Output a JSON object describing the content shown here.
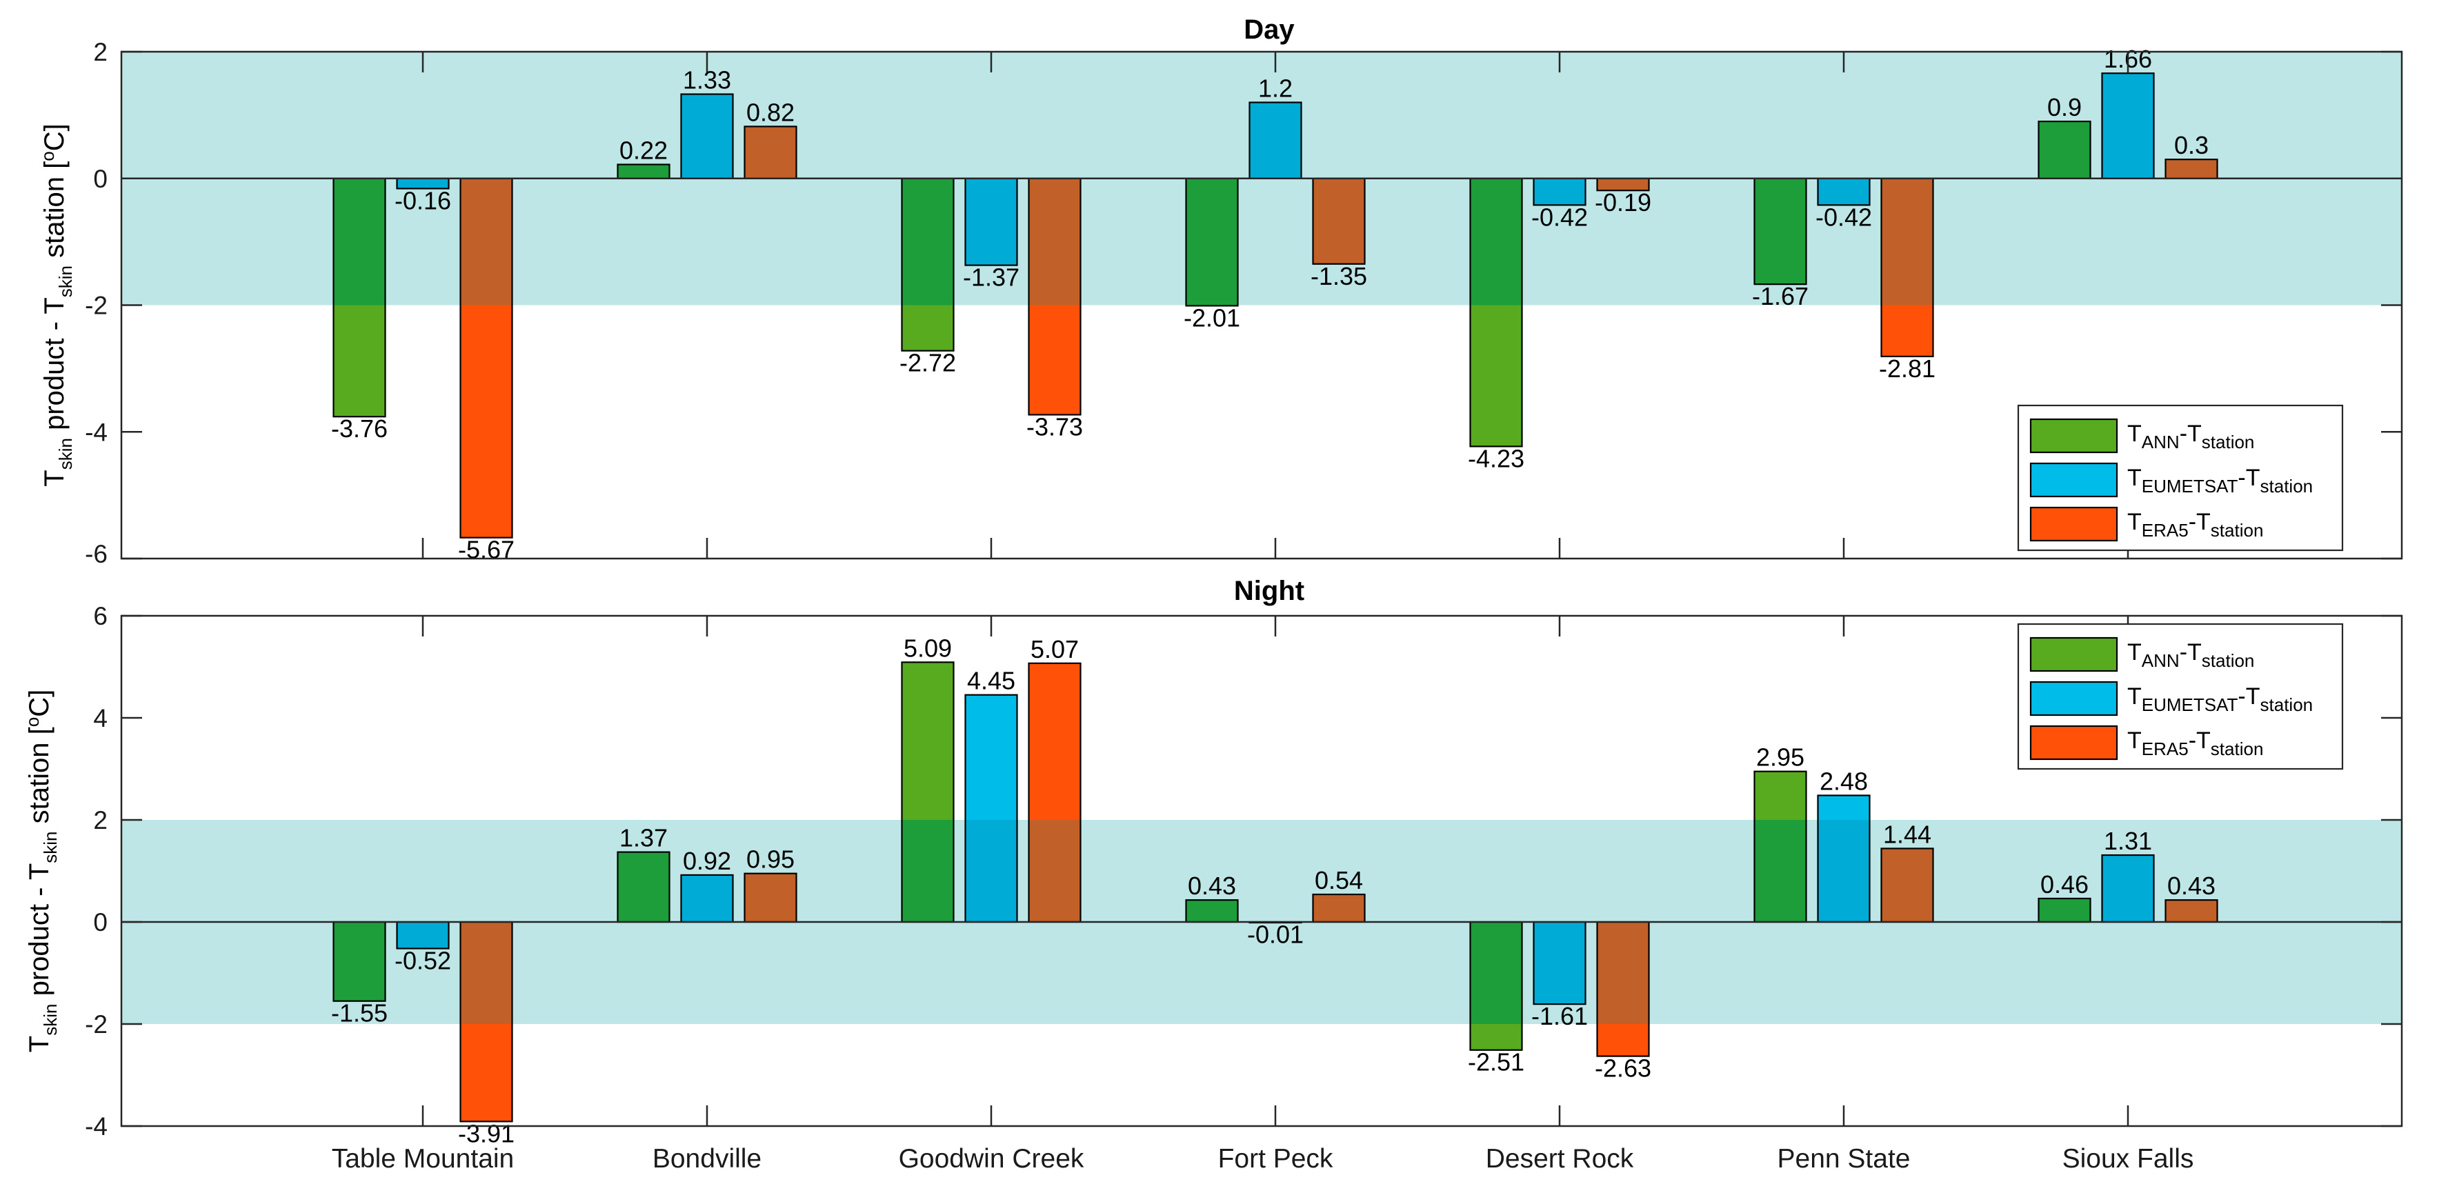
{
  "chart_data": [
    {
      "type": "bar",
      "title": "Day",
      "ylabel": {
        "T": "T",
        "sub1": "skin",
        "mid": " product - T",
        "sub2": "skin",
        "end": " station [",
        "sup": "o",
        "unit": "C]"
      },
      "ylim": [
        -6,
        2
      ],
      "yticks": [
        -6,
        -4,
        -2,
        0,
        2
      ],
      "yticklabels": [
        "-6",
        "-4",
        "-2",
        "0",
        "2"
      ],
      "band": [
        -2,
        2
      ],
      "categories": [
        "Table Mountain",
        "Bondville",
        "Goodwin Creek",
        "Fort Peck",
        "Desert Rock",
        "Penn State",
        "Sioux Falls"
      ],
      "series": [
        {
          "values": [
            -3.76,
            0.22,
            -2.72,
            -2.01,
            -4.23,
            -1.67,
            0.9
          ],
          "labels": [
            "-3.76",
            "0.22",
            "-2.72",
            "-2.01",
            "-4.23",
            "-1.67",
            "0.9"
          ]
        },
        {
          "values": [
            -0.16,
            1.33,
            -1.37,
            1.2,
            -0.42,
            -0.42,
            1.66
          ],
          "labels": [
            "-0.16",
            "1.33",
            "-1.37",
            "1.2",
            "-0.42",
            "-0.42",
            "1.66"
          ]
        },
        {
          "values": [
            -5.67,
            0.82,
            -3.73,
            -1.35,
            -0.19,
            -2.81,
            0.3
          ],
          "labels": [
            "-5.67",
            "0.82",
            "-3.73",
            "-1.35",
            "-0.19",
            "-2.81",
            "0.3"
          ]
        }
      ],
      "legend": {
        "position": "bottom-right",
        "entries": [
          {
            "T": "T",
            "sub": "ANN",
            "dash": "-T",
            "sub2": "station"
          },
          {
            "T": "T",
            "sub": "EUMETSAT",
            "dash": "-T",
            "sub2": "station"
          },
          {
            "T": "T",
            "sub": "ERA5",
            "dash": "-T",
            "sub2": "station"
          }
        ]
      },
      "show_category_labels": false
    },
    {
      "type": "bar",
      "title": "Night",
      "ylabel": {
        "T": "T",
        "sub1": "skin",
        "mid": " product - T",
        "sub2": "skin",
        "end": " station [",
        "sup": "o",
        "unit": "C]"
      },
      "ylim": [
        -4,
        6
      ],
      "yticks": [
        -4,
        -2,
        0,
        2,
        4,
        6
      ],
      "yticklabels": [
        "-4",
        "-2",
        "0",
        "2",
        "4",
        "6"
      ],
      "band": [
        -2,
        2
      ],
      "categories": [
        "Table Mountain",
        "Bondville",
        "Goodwin Creek",
        "Fort Peck",
        "Desert Rock",
        "Penn State",
        "Sioux Falls"
      ],
      "series": [
        {
          "values": [
            -1.55,
            1.37,
            5.09,
            0.43,
            -2.51,
            2.95,
            0.46
          ],
          "labels": [
            "-1.55",
            "1.37",
            "5.09",
            "0.43",
            "-2.51",
            "2.95",
            "0.46"
          ]
        },
        {
          "values": [
            -0.52,
            0.92,
            4.45,
            -0.01,
            -1.61,
            2.48,
            1.31
          ],
          "labels": [
            "-0.52",
            "0.92",
            "4.45",
            "-0.01",
            "-1.61",
            "2.48",
            "1.31"
          ]
        },
        {
          "values": [
            -3.91,
            0.95,
            5.07,
            0.54,
            -2.63,
            1.44,
            0.43
          ],
          "labels": [
            "-3.91",
            "0.95",
            "5.07",
            "0.54",
            "-2.63",
            "1.44",
            "0.43"
          ]
        }
      ],
      "legend": {
        "position": "top-right",
        "entries": [
          {
            "T": "T",
            "sub": "ANN",
            "dash": "-T",
            "sub2": "station"
          },
          {
            "T": "T",
            "sub": "EUMETSAT",
            "dash": "-T",
            "sub2": "station"
          },
          {
            "T": "T",
            "sub": "ERA5",
            "dash": "-T",
            "sub2": "station"
          }
        ]
      },
      "show_category_labels": true
    }
  ],
  "colors": {
    "band": "#bfe6e6",
    "series_in_band": [
      "#1e9e3a",
      "#00acd6",
      "#c2602a"
    ],
    "series_out_band": [
      "#58ab1f",
      "#00bce8",
      "#ff5208"
    ],
    "bar_edge": "#000000",
    "axis": "#262626"
  }
}
